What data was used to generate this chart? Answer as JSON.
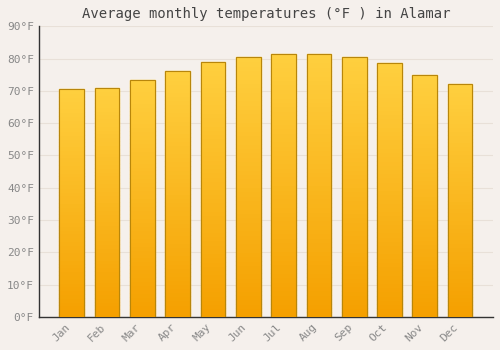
{
  "title": "Average monthly temperatures (°F ) in Alamar",
  "months": [
    "Jan",
    "Feb",
    "Mar",
    "Apr",
    "May",
    "Jun",
    "Jul",
    "Aug",
    "Sep",
    "Oct",
    "Nov",
    "Dec"
  ],
  "values": [
    70.5,
    71.0,
    73.5,
    76.0,
    79.0,
    80.5,
    81.5,
    81.5,
    80.5,
    78.5,
    75.0,
    72.0
  ],
  "ylim": [
    0,
    90
  ],
  "yticks": [
    0,
    10,
    20,
    30,
    40,
    50,
    60,
    70,
    80,
    90
  ],
  "ytick_labels": [
    "0°F",
    "10°F",
    "20°F",
    "30°F",
    "40°F",
    "50°F",
    "60°F",
    "70°F",
    "80°F",
    "90°F"
  ],
  "bar_color_top": "#FFD040",
  "bar_color_bottom": "#F5A000",
  "bar_edge_color": "#B8860B",
  "background_color": "#F5F0EC",
  "plot_bg_color": "#F5F0EC",
  "grid_color": "#E8E0D8",
  "title_fontsize": 10,
  "tick_fontsize": 8,
  "title_color": "#444444",
  "tick_color": "#888888",
  "font_family": "monospace",
  "bar_width": 0.7
}
